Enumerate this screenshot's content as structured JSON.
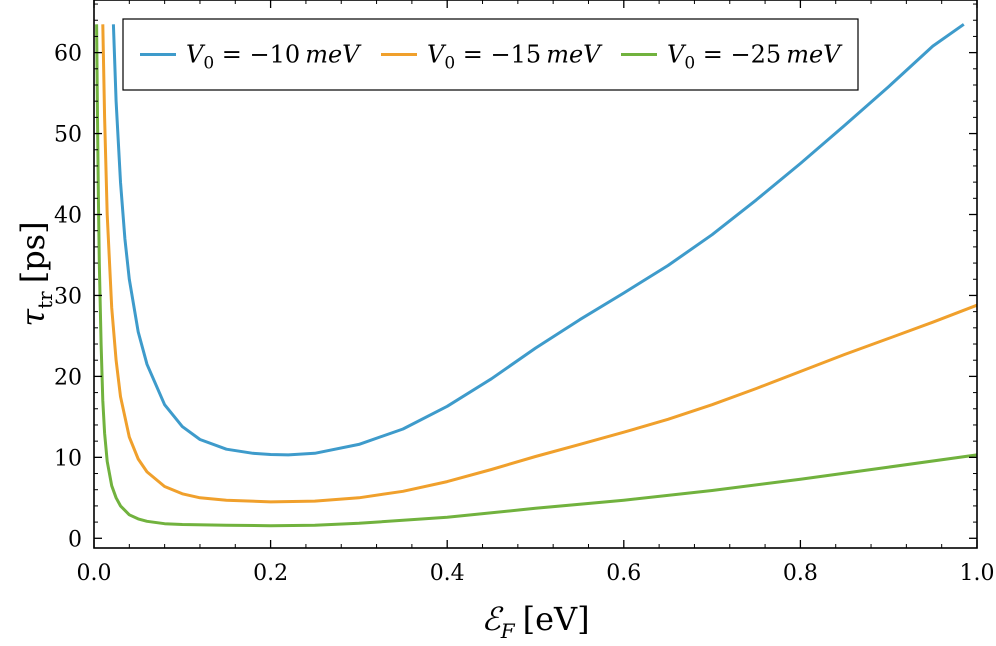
{
  "chart_data": {
    "type": "line",
    "title": "",
    "xlabel": {
      "symbol": "ℰ",
      "subscript": "F",
      "unit": "[eV]"
    },
    "ylabel": {
      "symbol": "τ",
      "subscript": "tr",
      "unit": "[ps]"
    },
    "xlim": [
      0.0,
      1.0
    ],
    "ylim": [
      -1.2,
      66.5
    ],
    "x_ticks": [
      0.0,
      0.2,
      0.4,
      0.6,
      0.8,
      1.0
    ],
    "x_tick_labels": [
      "0.0",
      "0.2",
      "0.4",
      "0.6",
      "0.8",
      "1.0"
    ],
    "y_ticks": [
      0,
      10,
      20,
      30,
      40,
      50,
      60
    ],
    "y_tick_labels": [
      "0",
      "10",
      "20",
      "30",
      "40",
      "50",
      "60"
    ],
    "grid": false,
    "legend_position": "top",
    "series": [
      {
        "name": "V0 = -10 meV",
        "label": {
          "symbol": "V",
          "subscript": "0",
          "value": " = −10",
          "unit": "meV"
        },
        "color": "#3e9bcb",
        "x": [
          0.022,
          0.025,
          0.03,
          0.035,
          0.04,
          0.05,
          0.06,
          0.08,
          0.1,
          0.12,
          0.15,
          0.18,
          0.2,
          0.22,
          0.25,
          0.3,
          0.35,
          0.4,
          0.45,
          0.5,
          0.55,
          0.6,
          0.65,
          0.7,
          0.75,
          0.8,
          0.85,
          0.9,
          0.95,
          0.985
        ],
        "y": [
          63.5,
          54,
          44,
          37,
          32,
          25.5,
          21.5,
          16.5,
          13.8,
          12.2,
          11.0,
          10.5,
          10.35,
          10.3,
          10.5,
          11.6,
          13.5,
          16.3,
          19.7,
          23.5,
          27.0,
          30.3,
          33.7,
          37.5,
          41.8,
          46.3,
          51.0,
          55.8,
          60.8,
          63.5
        ]
      },
      {
        "name": "V0 = -15 meV",
        "label": {
          "symbol": "V",
          "subscript": "0",
          "value": " = −15",
          "unit": "meV"
        },
        "color": "#f0a02c",
        "x": [
          0.01,
          0.012,
          0.015,
          0.02,
          0.025,
          0.03,
          0.04,
          0.05,
          0.06,
          0.08,
          0.1,
          0.12,
          0.15,
          0.2,
          0.25,
          0.3,
          0.35,
          0.4,
          0.45,
          0.5,
          0.55,
          0.6,
          0.65,
          0.7,
          0.75,
          0.8,
          0.85,
          0.9,
          0.95,
          1.0
        ],
        "y": [
          63.5,
          52,
          40,
          28.5,
          22,
          17.5,
          12.5,
          9.8,
          8.2,
          6.4,
          5.5,
          5.0,
          4.7,
          4.5,
          4.6,
          5.0,
          5.8,
          7.0,
          8.5,
          10.1,
          11.6,
          13.1,
          14.7,
          16.5,
          18.5,
          20.6,
          22.7,
          24.7,
          26.7,
          28.8
        ]
      },
      {
        "name": "V0 = -25 meV",
        "label": {
          "symbol": "V",
          "subscript": "0",
          "value": " = −25",
          "unit": "meV"
        },
        "color": "#71b23e",
        "x": [
          0.003,
          0.004,
          0.005,
          0.006,
          0.008,
          0.01,
          0.012,
          0.015,
          0.02,
          0.025,
          0.03,
          0.04,
          0.05,
          0.06,
          0.08,
          0.1,
          0.15,
          0.2,
          0.25,
          0.3,
          0.4,
          0.5,
          0.6,
          0.7,
          0.8,
          0.9,
          1.0
        ],
        "y": [
          63.5,
          52,
          42,
          34,
          24,
          17,
          13,
          9.5,
          6.5,
          5.0,
          4.0,
          2.9,
          2.4,
          2.1,
          1.8,
          1.7,
          1.6,
          1.55,
          1.6,
          1.85,
          2.6,
          3.7,
          4.7,
          5.9,
          7.3,
          8.8,
          10.3
        ]
      }
    ]
  }
}
